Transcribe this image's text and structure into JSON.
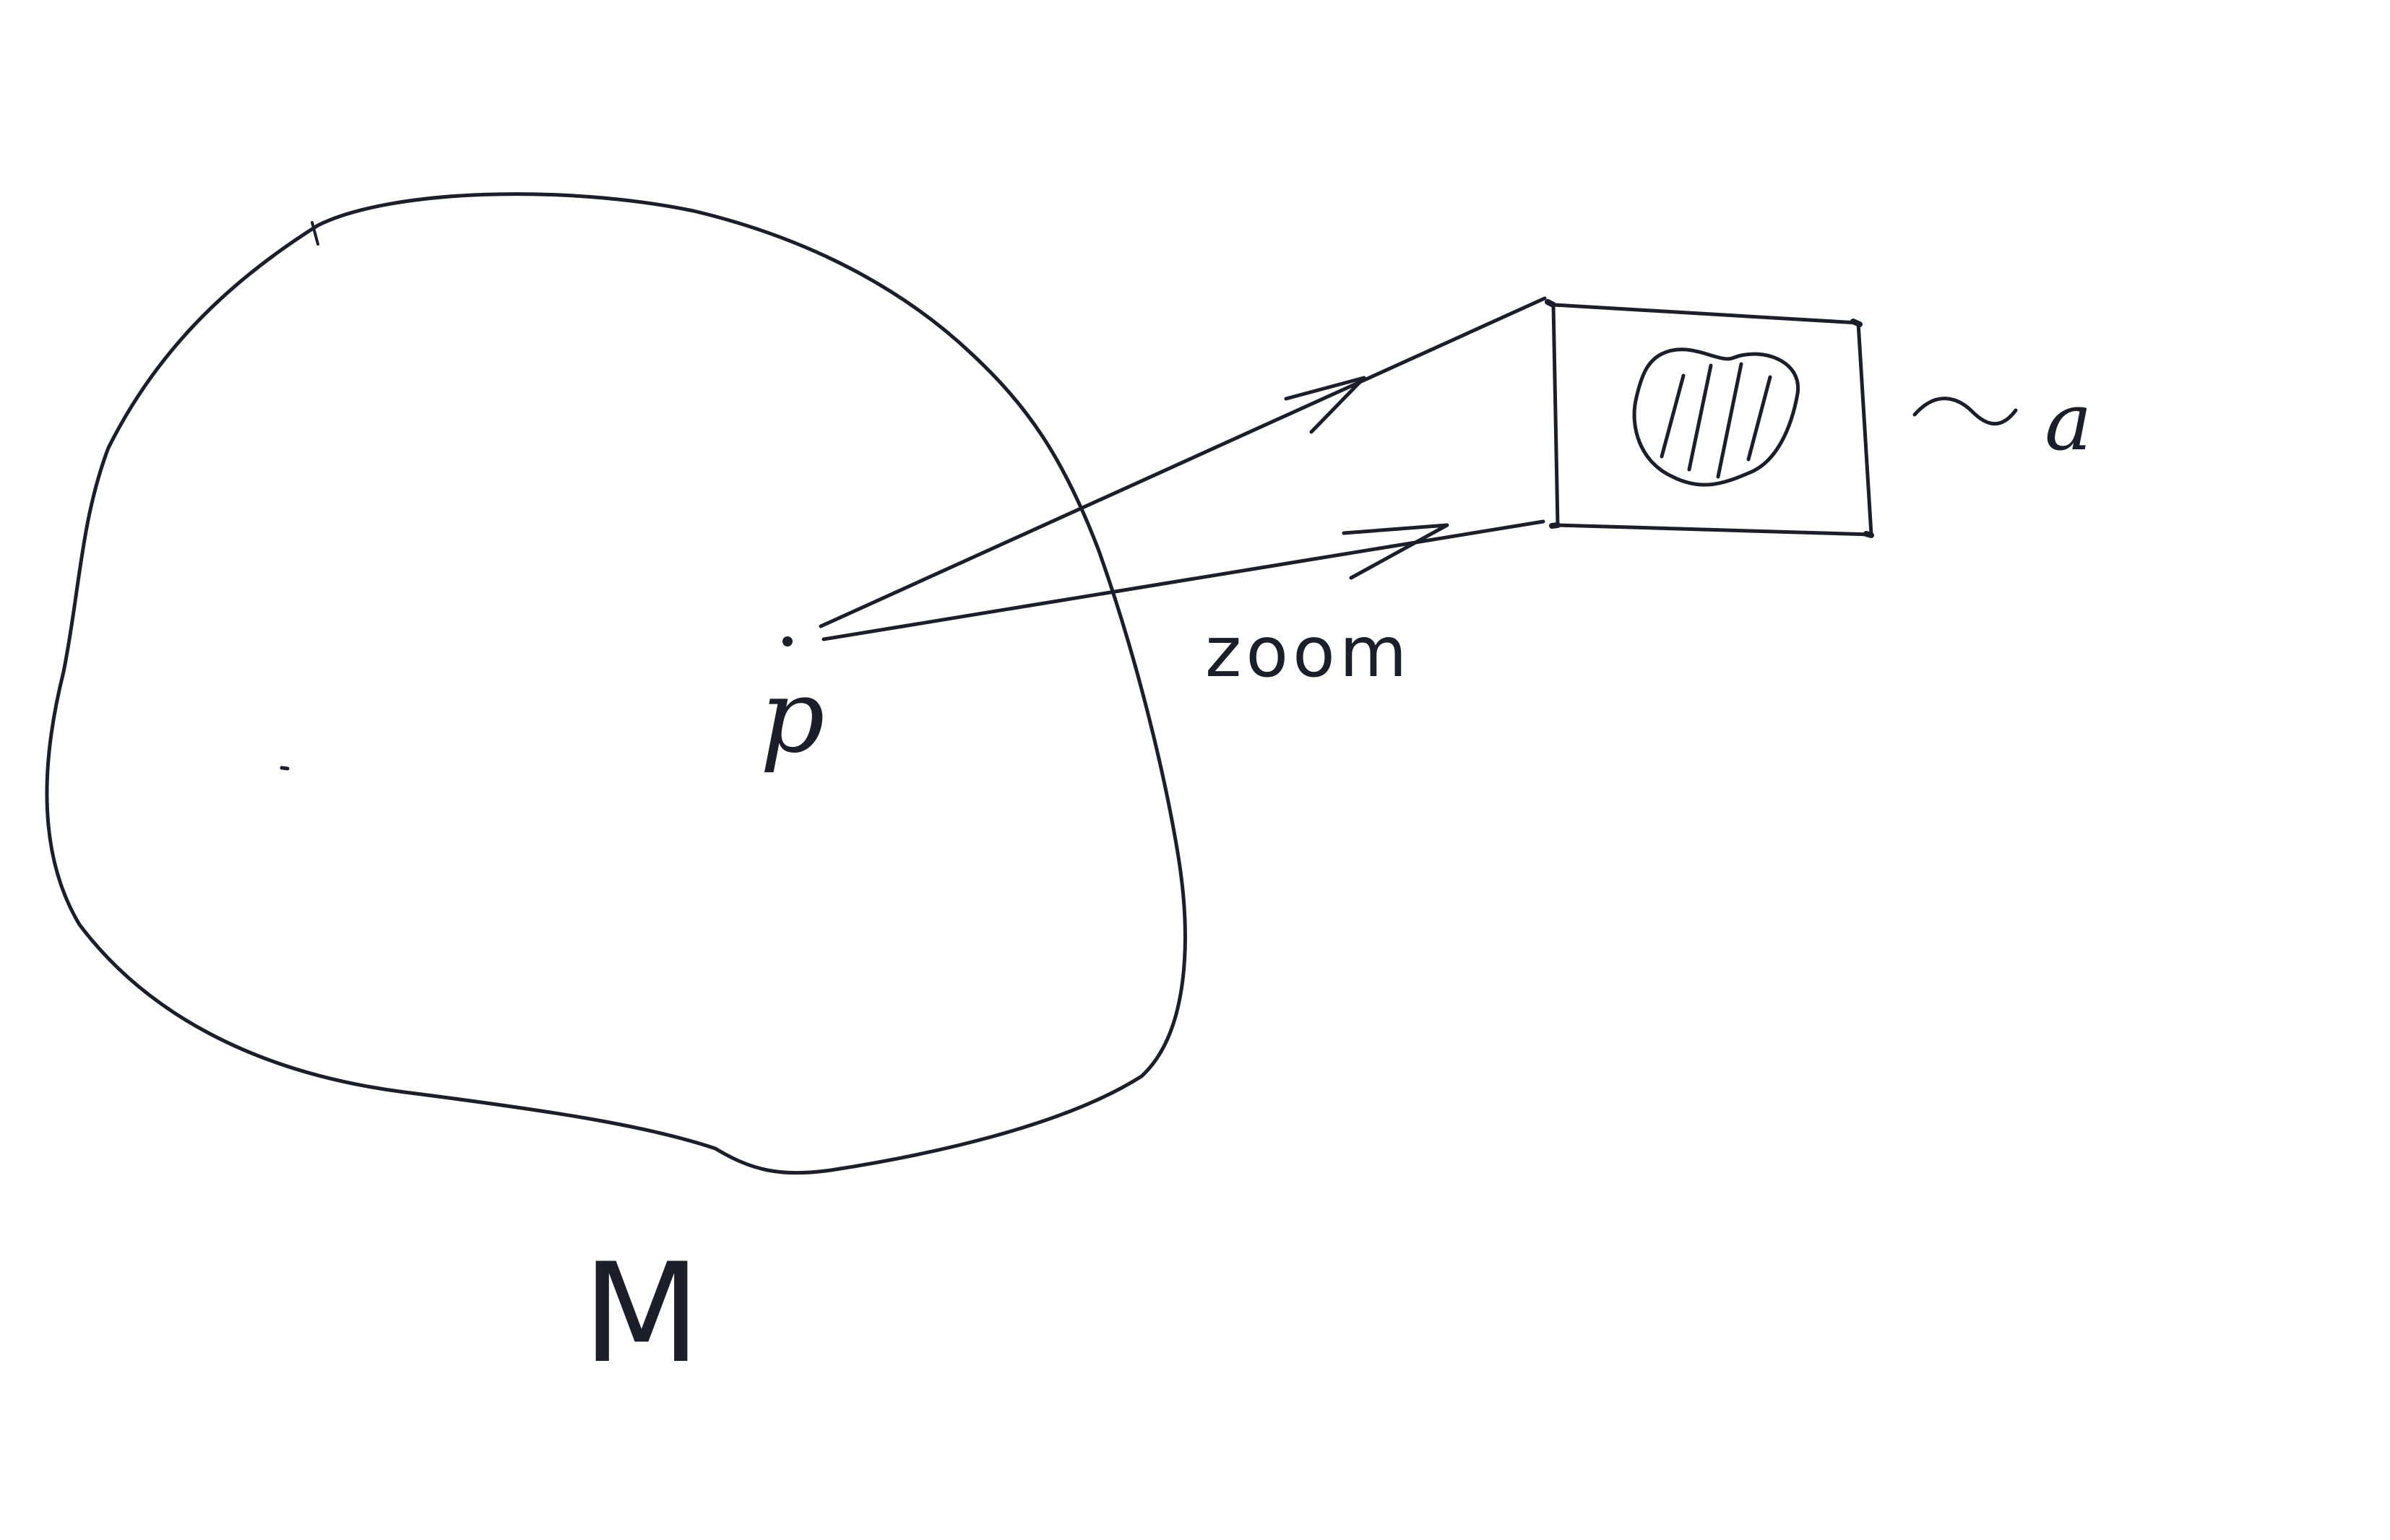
{
  "diagram": {
    "colors": {
      "background": "#ffffff",
      "ink": "#1c1f2a"
    },
    "labels": {
      "manifold": "M",
      "point": "p",
      "zoom": "zoom",
      "approx": "~ a"
    },
    "icons": {
      "point": "dot",
      "arrows": "arrowhead-marks",
      "hatching": "diagonal-hatch-lines"
    }
  }
}
